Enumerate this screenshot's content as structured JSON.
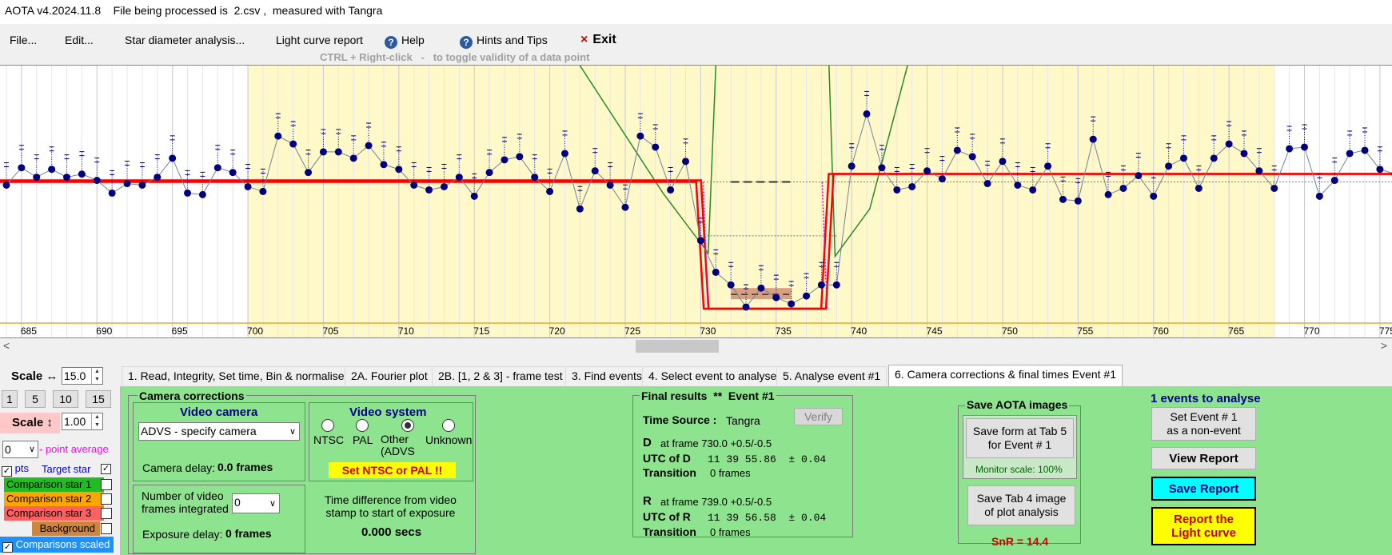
{
  "window": {
    "title": "AOTA v4.2024.11.8    File being processed is  2.csv ,  measured with Tangra"
  },
  "menu": {
    "file": "File...",
    "edit": "Edit...",
    "star_diameter": "Star diameter analysis...",
    "light_curve_report": "Light curve report",
    "help": "Help",
    "hints": "Hints and Tips",
    "exit": "Exit",
    "exit_icon": "×"
  },
  "hint_line": "CTRL + Right-click   -   to toggle validity of a data point",
  "colors": {
    "plot_highlight": "#fff8c8",
    "data_points": "#00007f",
    "model_fit": "#ff0000",
    "green_curve": "#2a8a2a",
    "panel_green": "#8ee38e",
    "baseline_orange": "#f5a623"
  },
  "plot": {
    "x_ticks": [
      "685",
      "690",
      "695",
      "700",
      "705",
      "710",
      "715",
      "720",
      "725",
      "730",
      "735",
      "740",
      "745",
      "750",
      "755",
      "760",
      "765",
      "770",
      "775"
    ],
    "x_tick_values": [
      685,
      690,
      695,
      700,
      705,
      710,
      715,
      720,
      725,
      730,
      735,
      740,
      745,
      750,
      755,
      760,
      765,
      770,
      775
    ],
    "x_range": [
      684,
      775.8
    ],
    "highlight_range": [
      700,
      768
    ],
    "event_D_frame": 730.0,
    "event_R_frame": 739.0,
    "series": [
      {
        "x": 684,
        "y": 0.75
      },
      {
        "x": 685,
        "y": 0.86
      },
      {
        "x": 686,
        "y": 0.8
      },
      {
        "x": 687,
        "y": 0.85
      },
      {
        "x": 688,
        "y": 0.8
      },
      {
        "x": 689,
        "y": 0.82
      },
      {
        "x": 690,
        "y": 0.78
      },
      {
        "x": 691,
        "y": 0.7
      },
      {
        "x": 692,
        "y": 0.76
      },
      {
        "x": 693,
        "y": 0.75
      },
      {
        "x": 694,
        "y": 0.8
      },
      {
        "x": 695,
        "y": 0.92
      },
      {
        "x": 696,
        "y": 0.7
      },
      {
        "x": 697,
        "y": 0.69
      },
      {
        "x": 698,
        "y": 0.86
      },
      {
        "x": 699,
        "y": 0.83
      },
      {
        "x": 700,
        "y": 0.74
      },
      {
        "x": 701,
        "y": 0.71
      },
      {
        "x": 702,
        "y": 1.06
      },
      {
        "x": 703,
        "y": 1.01
      },
      {
        "x": 704,
        "y": 0.83
      },
      {
        "x": 705,
        "y": 0.96
      },
      {
        "x": 706,
        "y": 0.96
      },
      {
        "x": 707,
        "y": 0.92
      },
      {
        "x": 708,
        "y": 1.0
      },
      {
        "x": 709,
        "y": 0.88
      },
      {
        "x": 710,
        "y": 0.85
      },
      {
        "x": 711,
        "y": 0.75
      },
      {
        "x": 712,
        "y": 0.72
      },
      {
        "x": 713,
        "y": 0.74
      },
      {
        "x": 714,
        "y": 0.8
      },
      {
        "x": 715,
        "y": 0.68
      },
      {
        "x": 716,
        "y": 0.83
      },
      {
        "x": 717,
        "y": 0.91
      },
      {
        "x": 718,
        "y": 0.93
      },
      {
        "x": 719,
        "y": 0.8
      },
      {
        "x": 720,
        "y": 0.71
      },
      {
        "x": 721,
        "y": 0.95
      },
      {
        "x": 722,
        "y": 0.6
      },
      {
        "x": 723,
        "y": 0.84
      },
      {
        "x": 724,
        "y": 0.75
      },
      {
        "x": 725,
        "y": 0.61
      },
      {
        "x": 726,
        "y": 1.06
      },
      {
        "x": 727,
        "y": 0.99
      },
      {
        "x": 728,
        "y": 0.72
      },
      {
        "x": 729,
        "y": 0.9
      },
      {
        "x": 730,
        "y": 0.4
      },
      {
        "x": 731,
        "y": 0.2
      },
      {
        "x": 732,
        "y": 0.12
      },
      {
        "x": 733,
        "y": -0.02
      },
      {
        "x": 734,
        "y": 0.1
      },
      {
        "x": 735,
        "y": 0.04
      },
      {
        "x": 736,
        "y": 0.0
      },
      {
        "x": 737,
        "y": 0.05
      },
      {
        "x": 738,
        "y": 0.12
      },
      {
        "x": 739,
        "y": 0.12
      },
      {
        "x": 740,
        "y": 0.87
      },
      {
        "x": 741,
        "y": 1.2
      },
      {
        "x": 742,
        "y": 0.86
      },
      {
        "x": 743,
        "y": 0.72
      },
      {
        "x": 744,
        "y": 0.74
      },
      {
        "x": 745,
        "y": 0.84
      },
      {
        "x": 746,
        "y": 0.79
      },
      {
        "x": 747,
        "y": 0.97
      },
      {
        "x": 748,
        "y": 0.93
      },
      {
        "x": 749,
        "y": 0.76
      },
      {
        "x": 750,
        "y": 0.9
      },
      {
        "x": 751,
        "y": 0.75
      },
      {
        "x": 752,
        "y": 0.72
      },
      {
        "x": 753,
        "y": 0.87
      },
      {
        "x": 754,
        "y": 0.66
      },
      {
        "x": 755,
        "y": 0.65
      },
      {
        "x": 756,
        "y": 1.04
      },
      {
        "x": 757,
        "y": 0.69
      },
      {
        "x": 758,
        "y": 0.73
      },
      {
        "x": 759,
        "y": 0.81
      },
      {
        "x": 760,
        "y": 0.68
      },
      {
        "x": 761,
        "y": 0.87
      },
      {
        "x": 762,
        "y": 0.92
      },
      {
        "x": 763,
        "y": 0.73
      },
      {
        "x": 764,
        "y": 0.92
      },
      {
        "x": 765,
        "y": 1.01
      },
      {
        "x": 766,
        "y": 0.95
      },
      {
        "x": 767,
        "y": 0.84
      },
      {
        "x": 768,
        "y": 0.73
      },
      {
        "x": 769,
        "y": 0.98
      },
      {
        "x": 770,
        "y": 0.99
      },
      {
        "x": 771,
        "y": 0.68
      },
      {
        "x": 772,
        "y": 0.78
      },
      {
        "x": 773,
        "y": 0.95
      },
      {
        "x": 774,
        "y": 0.97
      },
      {
        "x": 775,
        "y": 0.85
      },
      {
        "x": 776,
        "y": 0.82
      }
    ]
  },
  "left_panel": {
    "scale_h_label": "Scale ↔",
    "scale_h_value": "15.0",
    "scale_buttons": [
      "1",
      "5",
      "10",
      "15"
    ],
    "scale_v_label": "Scale ↕",
    "scale_v_value": "1.00",
    "point_avg_value": "0",
    "point_avg_label": "- point average",
    "pts_label": "pts",
    "target_star_label": "Target star",
    "comparison_stars": [
      {
        "label": "Comparison star 1",
        "color": "#22bb22"
      },
      {
        "label": "Comparison star 2",
        "color": "#ffa500"
      },
      {
        "label": "Comparison star 3",
        "color": "#ff6060"
      },
      {
        "label": "Background",
        "color": "#cd853f"
      }
    ],
    "comparisons_scaled": "Comparisons scaled"
  },
  "tabs": [
    "1.  Read, Integrity, Set time, Bin & normalise",
    "2A. Fourier plot",
    "2B. [1, 2 & 3] - frame test",
    "3. Find events",
    "4. Select event to analyse",
    "5. Analyse event #1",
    "6. Camera corrections & final times Event #1"
  ],
  "camera": {
    "group_title": "Camera corrections",
    "video_camera_label": "Video camera",
    "camera_select": "ADVS - specify camera",
    "camera_delay_label": "Camera delay:",
    "camera_delay_value": "0.0 frames",
    "video_system_label": "Video system",
    "video_systems": [
      "NTSC",
      "PAL",
      "Other\n(ADVS",
      "Unknown"
    ],
    "set_ntsc_warning": "Set NTSC or PAL !!",
    "frames_integrated_label": "Number of video\nframes integrated",
    "frames_integrated_value": "0",
    "exposure_delay_label": "Exposure delay:",
    "exposure_delay_value": "0 frames",
    "time_diff_label": "Time difference from video\nstamp to start of exposure",
    "time_diff_value": "0.000 secs"
  },
  "final_results": {
    "title": "Final results  **  Event #1",
    "time_source_label": "Time Source :",
    "time_source_value": "Tangra",
    "verify_button": "Verify",
    "d_label": "D",
    "d_frame": "at frame 730.0 +0.5/-0.5",
    "utc_d_label": "UTC of D",
    "utc_d_value": "11 39 55.86  ± 0.04",
    "transition_label": "Transition",
    "transition_d": "0 frames",
    "r_label": "R",
    "r_frame": "at frame 739.0 +0.5/-0.5",
    "utc_r_label": "UTC of R",
    "utc_r_value": "11 39 56.58  ± 0.04",
    "transition_r": "0 frames"
  },
  "save_images": {
    "title": "Save AOTA images",
    "save_form_button": "Save form at Tab 5\nfor Event # 1",
    "monitor_scale": "Monitor scale: 100%",
    "save_tab4_button": "Save Tab 4 image\nof plot analysis",
    "snr": "SnR = 14.4"
  },
  "report": {
    "events_label": "1 events to analyse",
    "non_event_button": "Set Event # 1\nas a non-event",
    "view_report_button": "View Report",
    "save_report_button": "Save Report",
    "report_lc_button": "Report the\nLight curve"
  }
}
